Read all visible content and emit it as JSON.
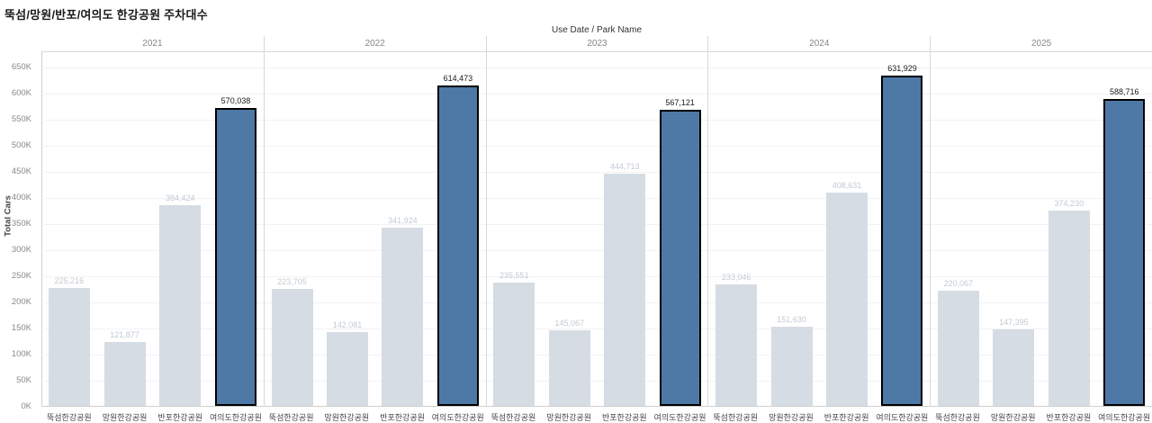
{
  "title": "뚝섬/망원/반포/여의도 한강공원 주차대수",
  "header": {
    "column_field_label": "Use Date  /  Park Name"
  },
  "axis": {
    "y_title": "Total Cars",
    "y_tick_labels": [
      "0K",
      "50K",
      "100K",
      "150K",
      "200K",
      "250K",
      "300K",
      "350K",
      "400K",
      "450K",
      "500K",
      "550K",
      "600K",
      "650K"
    ]
  },
  "colors": {
    "highlight_bar": "#4e79a7",
    "highlight_border": "#000000",
    "default_bar": "#d6dce3",
    "muted_value_label": "#c2cad3",
    "dark_value_label": "#1a1a1a"
  },
  "chart_data": {
    "type": "bar",
    "title": "뚝섬/망원/반포/여의도 한강공원 주차대수",
    "xlabel": "Use Date  /  Park Name",
    "ylabel": "Total Cars",
    "ylim": [
      0,
      650000
    ],
    "grid": true,
    "legend": "none",
    "categories": [
      "뚝섬한강공원",
      "망원한강공원",
      "반포한강공원",
      "여의도한강공원"
    ],
    "highlighted_category": "여의도한강공원",
    "series": [
      {
        "name": "2021",
        "values": [
          225216,
          121877,
          384424,
          570038
        ]
      },
      {
        "name": "2022",
        "values": [
          223705,
          142081,
          341924,
          614473
        ]
      },
      {
        "name": "2023",
        "values": [
          235551,
          145067,
          444713,
          567121
        ]
      },
      {
        "name": "2024",
        "values": [
          233046,
          151630,
          408631,
          631929
        ]
      },
      {
        "name": "2025",
        "values": [
          220067,
          147395,
          374230,
          588716
        ]
      }
    ]
  }
}
